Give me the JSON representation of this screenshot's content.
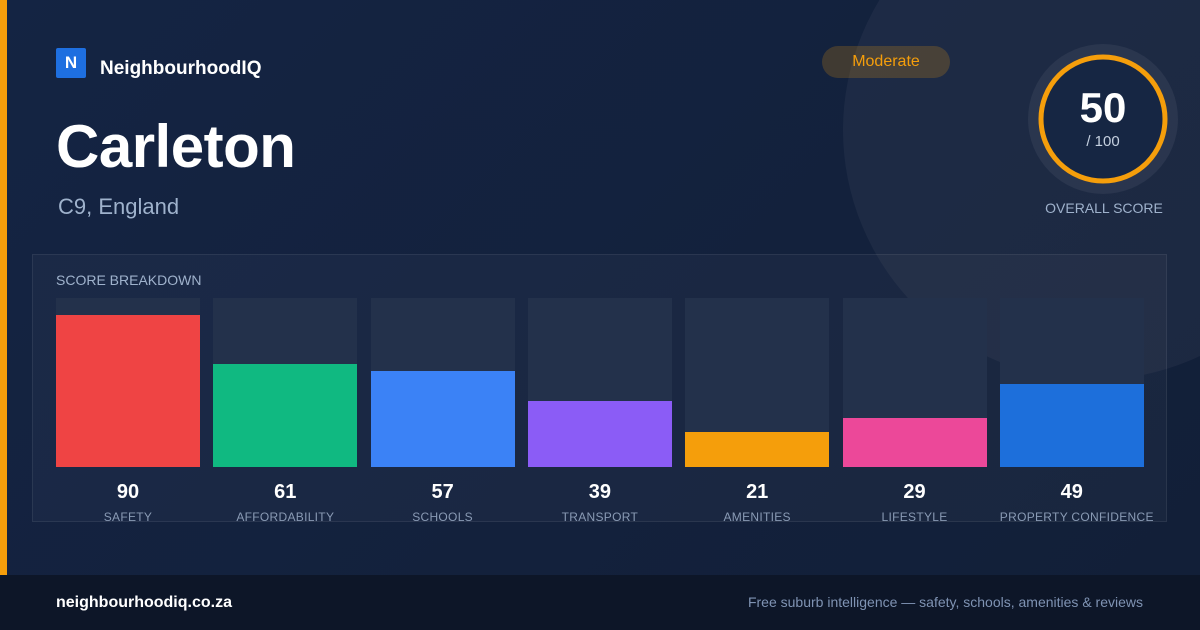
{
  "brand": {
    "logo_letter": "N",
    "name": "NeighbourhoodIQ"
  },
  "location": {
    "title": "Carleton",
    "subtitle": "C9, England"
  },
  "badge": {
    "label": "Moderate",
    "color": "#f59e0b"
  },
  "overall": {
    "score": "50",
    "max_label": "/ 100",
    "fraction": 0.5,
    "caption": "OVERALL SCORE",
    "ring_color": "#f59e0b"
  },
  "breakdown": {
    "title": "SCORE BREAKDOWN",
    "items": [
      {
        "label": "SAFETY",
        "value": 90,
        "color": "#ef4444"
      },
      {
        "label": "AFFORDABILITY",
        "value": 61,
        "color": "#10b981"
      },
      {
        "label": "SCHOOLS",
        "value": 57,
        "color": "#3b82f6"
      },
      {
        "label": "TRANSPORT",
        "value": 39,
        "color": "#8b5cf6"
      },
      {
        "label": "AMENITIES",
        "value": 21,
        "color": "#f59e0b"
      },
      {
        "label": "LIFESTYLE",
        "value": 29,
        "color": "#ec4899"
      },
      {
        "label": "PROPERTY CONFIDENCE",
        "value": 49,
        "color": "#1d6fdb"
      }
    ]
  },
  "footer": {
    "domain": "neighbourhoodiq.co.za",
    "tagline": "Free suburb intelligence — safety, schools, amenities & reviews"
  }
}
